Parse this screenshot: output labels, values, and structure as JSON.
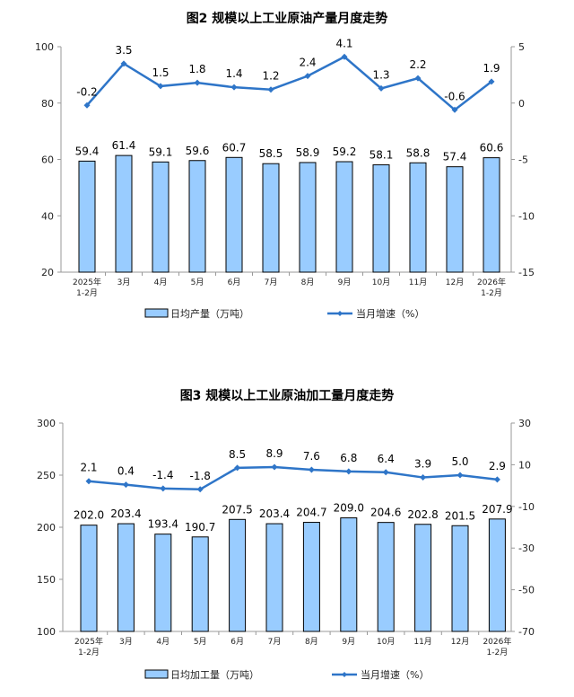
{
  "chart_data": [
    {
      "type": "bar+line",
      "title": "图2  规模以上工业原油产量月度走势",
      "categories": [
        "2025年\n1-2月",
        "3月",
        "4月",
        "5月",
        "6月",
        "7月",
        "8月",
        "9月",
        "10月",
        "11月",
        "12月",
        "2026年\n1-2月"
      ],
      "series": [
        {
          "name": "日均产量（万吨）",
          "type": "bar",
          "axis": "left",
          "values": [
            59.4,
            61.4,
            59.1,
            59.6,
            60.7,
            58.5,
            58.9,
            59.2,
            58.1,
            58.8,
            57.4,
            60.6
          ]
        },
        {
          "name": "当月增速（%）",
          "type": "line",
          "axis": "right",
          "values": [
            -0.2,
            3.5,
            1.5,
            1.8,
            1.4,
            1.2,
            2.4,
            4.1,
            1.3,
            2.2,
            -0.6,
            1.9
          ]
        }
      ],
      "ylim": [
        20,
        100
      ],
      "yticks": [
        20,
        40,
        60,
        80,
        100
      ],
      "y2lim": [
        -15,
        5
      ],
      "y2ticks": [
        -15,
        -10,
        -5,
        0,
        5
      ],
      "legend": "bottom",
      "grid": false,
      "colors": {
        "bar": "#99ccff",
        "bar_edge": "#000000",
        "line": "#2e75c8"
      }
    },
    {
      "type": "bar+line",
      "title": "图3  规模以上工业原油加工量月度走势",
      "categories": [
        "2025年\n1-2月",
        "3月",
        "4月",
        "5月",
        "6月",
        "7月",
        "8月",
        "9月",
        "10月",
        "11月",
        "12月",
        "2026年\n1-2月"
      ],
      "series": [
        {
          "name": "日均加工量（万吨）",
          "type": "bar",
          "axis": "left",
          "values": [
            202.0,
            203.4,
            193.4,
            190.7,
            207.5,
            203.4,
            204.7,
            209.0,
            204.6,
            202.8,
            201.5,
            207.9
          ]
        },
        {
          "name": "当月增速（%）",
          "type": "line",
          "axis": "right",
          "values": [
            2.1,
            0.4,
            -1.4,
            -1.8,
            8.5,
            8.9,
            7.6,
            6.8,
            6.4,
            3.9,
            5.0,
            2.9
          ]
        }
      ],
      "ylim": [
        100,
        300
      ],
      "yticks": [
        100,
        150,
        200,
        250,
        300
      ],
      "y2lim": [
        -70,
        30
      ],
      "y2ticks": [
        -70,
        -50,
        -30,
        -10,
        10,
        30
      ],
      "legend": "bottom",
      "grid": false,
      "colors": {
        "bar": "#99ccff",
        "bar_edge": "#000000",
        "line": "#2e75c8"
      }
    }
  ]
}
